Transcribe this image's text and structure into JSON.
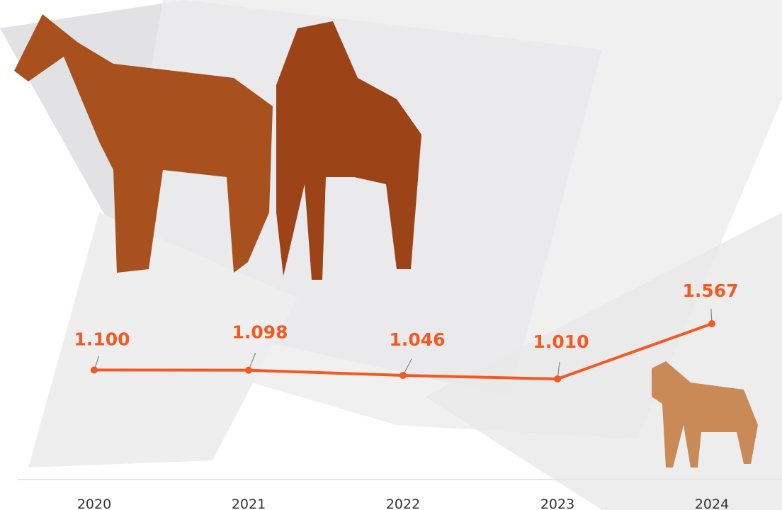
{
  "chart_data": {
    "type": "line",
    "categories": [
      "2020",
      "2021",
      "2022",
      "2023",
      "2024"
    ],
    "series": [
      {
        "color": "#f15a22",
        "values": [
          1.1,
          1.098,
          1.046,
          1.01,
          1.567
        ],
        "value_labels": [
          "1.100",
          "1.098",
          "1.046",
          "1.010",
          "1.567"
        ]
      }
    ]
  }
}
